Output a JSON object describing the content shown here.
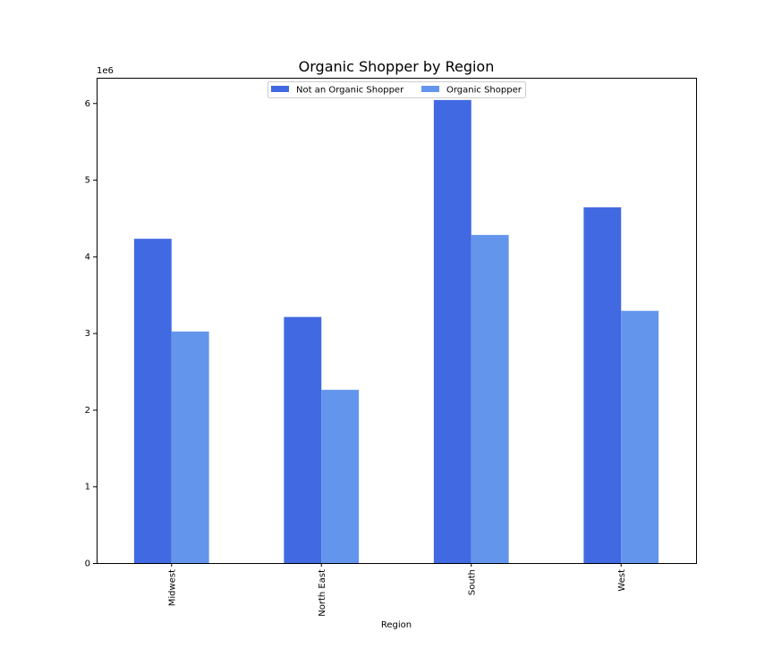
{
  "chart_data": {
    "type": "bar",
    "title": "Organic Shopper by Region",
    "xlabel": "Region",
    "ylabel": "",
    "y_multiplier_label": "1e6",
    "categories": [
      "Midwest",
      "North East",
      "South",
      "West"
    ],
    "series": [
      {
        "name": "Not an Organic Shopper",
        "color": "#4169e1",
        "values": [
          4230000,
          3210000,
          6040000,
          4640000
        ]
      },
      {
        "name": "Organic Shopper",
        "color": "#6495ed",
        "values": [
          3020000,
          2260000,
          4280000,
          3290000
        ]
      }
    ],
    "ylim": [
      0,
      6330000
    ],
    "yticks": [
      0,
      1000000,
      2000000,
      3000000,
      4000000,
      5000000,
      6000000
    ],
    "ytick_labels": [
      "0",
      "1",
      "2",
      "3",
      "4",
      "5",
      "6"
    ],
    "grid": false,
    "legend_position": "top-center",
    "x_tick_rotation": "vertical"
  }
}
